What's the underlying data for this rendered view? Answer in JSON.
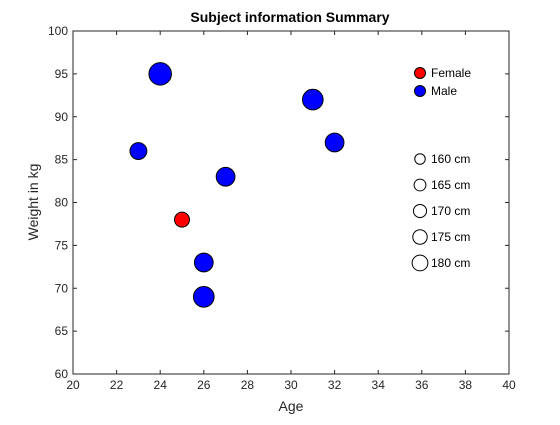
{
  "chart_data": {
    "type": "scatter",
    "title": "Subject information Summary",
    "xlabel": "Age",
    "ylabel": "Weight in kg",
    "xlim": [
      20,
      40
    ],
    "ylim": [
      60,
      100
    ],
    "xticks": [
      20,
      22,
      24,
      26,
      28,
      30,
      32,
      34,
      36,
      38,
      40
    ],
    "yticks": [
      60,
      65,
      70,
      75,
      80,
      85,
      90,
      95,
      100
    ],
    "grid": false,
    "colors": {
      "Female": "#ff0000",
      "Male": "#0000ff",
      "marker_edge": "#000000",
      "axis": "#262626"
    },
    "points": [
      {
        "x": 24,
        "y": 95,
        "height_cm": 180,
        "gender": "Male"
      },
      {
        "x": 23,
        "y": 86,
        "height_cm": 165,
        "gender": "Male"
      },
      {
        "x": 25,
        "y": 78,
        "height_cm": 160,
        "gender": "Female"
      },
      {
        "x": 27,
        "y": 83,
        "height_cm": 170,
        "gender": "Male"
      },
      {
        "x": 26,
        "y": 73,
        "height_cm": 170,
        "gender": "Male"
      },
      {
        "x": 26,
        "y": 69,
        "height_cm": 175,
        "gender": "Male"
      },
      {
        "x": 31,
        "y": 92,
        "height_cm": 175,
        "gender": "Male"
      },
      {
        "x": 32,
        "y": 87,
        "height_cm": 170,
        "gender": "Male"
      }
    ],
    "legend_color": {
      "placement": "top-right",
      "entries": [
        {
          "label": "Female",
          "gender": "Female"
        },
        {
          "label": "Male",
          "gender": "Male"
        }
      ]
    },
    "legend_size": {
      "placement": "right",
      "entries": [
        {
          "label": "160 cm",
          "height_cm": 160
        },
        {
          "label": "165 cm",
          "height_cm": 165
        },
        {
          "label": "170 cm",
          "height_cm": 170
        },
        {
          "label": "175 cm",
          "height_cm": 175
        },
        {
          "label": "180 cm",
          "height_cm": 180
        }
      ]
    }
  }
}
